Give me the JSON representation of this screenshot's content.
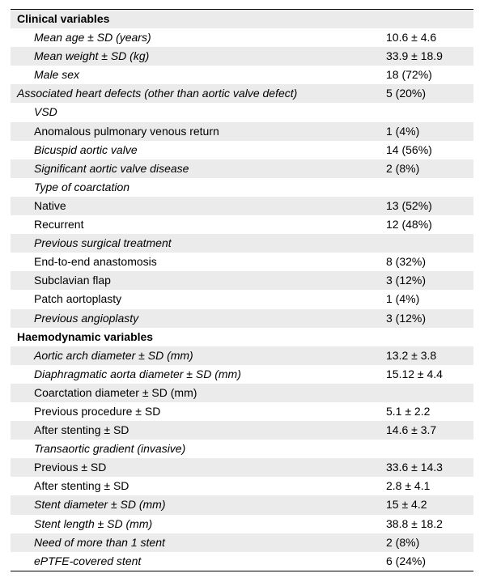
{
  "rows": [
    {
      "label": "Clinical variables",
      "value": "",
      "level": 0,
      "bold": true,
      "italic": false,
      "shaded": true
    },
    {
      "label": "Mean age ± SD (years)",
      "value": "10.6 ± 4.6",
      "level": 1,
      "bold": false,
      "italic": true,
      "shaded": false
    },
    {
      "label": "Mean weight ± SD (kg)",
      "value": "33.9 ± 18.9",
      "level": 1,
      "bold": false,
      "italic": true,
      "shaded": true
    },
    {
      "label": "Male sex",
      "value": "18 (72%)",
      "level": 1,
      "bold": false,
      "italic": true,
      "shaded": false
    },
    {
      "label": "Associated heart defects (other than aortic valve defect)",
      "value": "5 (20%)",
      "level": 0,
      "bold": false,
      "italic": true,
      "shaded": true
    },
    {
      "label": "VSD",
      "value": "",
      "level": 1,
      "bold": false,
      "italic": true,
      "shaded": false
    },
    {
      "label": "Anomalous pulmonary venous return",
      "value": "1 (4%)",
      "level": 1,
      "bold": false,
      "italic": false,
      "shaded": true
    },
    {
      "label": "Bicuspid aortic valve",
      "value": "14 (56%)",
      "level": 1,
      "bold": false,
      "italic": true,
      "shaded": false
    },
    {
      "label": "Significant aortic valve disease",
      "value": "2 (8%)",
      "level": 1,
      "bold": false,
      "italic": true,
      "shaded": true
    },
    {
      "label": "Type of coarctation",
      "value": "",
      "level": 1,
      "bold": false,
      "italic": true,
      "shaded": false
    },
    {
      "label": "Native",
      "value": "13 (52%)",
      "level": 1,
      "bold": false,
      "italic": false,
      "shaded": true
    },
    {
      "label": "Recurrent",
      "value": "12 (48%)",
      "level": 1,
      "bold": false,
      "italic": false,
      "shaded": false
    },
    {
      "label": "Previous surgical treatment",
      "value": "",
      "level": 1,
      "bold": false,
      "italic": true,
      "shaded": true
    },
    {
      "label": "End-to-end anastomosis",
      "value": "8 (32%)",
      "level": 1,
      "bold": false,
      "italic": false,
      "shaded": false
    },
    {
      "label": "Subclavian flap",
      "value": "3 (12%)",
      "level": 1,
      "bold": false,
      "italic": false,
      "shaded": true
    },
    {
      "label": "Patch aortoplasty",
      "value": "1 (4%)",
      "level": 1,
      "bold": false,
      "italic": false,
      "shaded": false
    },
    {
      "label": "Previous angioplasty",
      "value": "3 (12%)",
      "level": 1,
      "bold": false,
      "italic": true,
      "shaded": true
    },
    {
      "label": "Haemodynamic variables",
      "value": "",
      "level": 0,
      "bold": true,
      "italic": false,
      "shaded": false
    },
    {
      "label": "Aortic arch diameter ± SD (mm)",
      "value": "13.2 ± 3.8",
      "level": 1,
      "bold": false,
      "italic": true,
      "shaded": true
    },
    {
      "label": "Diaphragmatic aorta diameter ± SD (mm)",
      "value": "15.12 ± 4.4",
      "level": 1,
      "bold": false,
      "italic": true,
      "shaded": false
    },
    {
      "label": "Coarctation diameter ± SD (mm)",
      "value": "",
      "level": 1,
      "bold": false,
      "italic": false,
      "shaded": true
    },
    {
      "label": "Previous procedure ± SD",
      "value": "5.1 ± 2.2",
      "level": 1,
      "bold": false,
      "italic": false,
      "shaded": false
    },
    {
      "label": "After stenting ± SD",
      "value": "14.6 ± 3.7",
      "level": 1,
      "bold": false,
      "italic": false,
      "shaded": true
    },
    {
      "label": "Transaortic gradient (invasive)",
      "value": "",
      "level": 1,
      "bold": false,
      "italic": true,
      "shaded": false
    },
    {
      "label": "Previous ± SD",
      "value": "33.6 ± 14.3",
      "level": 1,
      "bold": false,
      "italic": false,
      "shaded": true
    },
    {
      "label": "After stenting ± SD",
      "value": "2.8 ± 4.1",
      "level": 1,
      "bold": false,
      "italic": false,
      "shaded": false
    },
    {
      "label": "Stent diameter ± SD (mm)",
      "value": "15 ± 4.2",
      "level": 1,
      "bold": false,
      "italic": true,
      "shaded": true
    },
    {
      "label": "Stent length ± SD (mm)",
      "value": "38.8 ± 18.2",
      "level": 1,
      "bold": false,
      "italic": true,
      "shaded": false
    },
    {
      "label": "Need of more than 1 stent",
      "value": "2 (8%)",
      "level": 1,
      "bold": false,
      "italic": true,
      "shaded": true
    },
    {
      "label": "ePTFE-covered stent",
      "value": "6 (24%)",
      "level": 1,
      "bold": false,
      "italic": true,
      "shaded": false
    }
  ]
}
